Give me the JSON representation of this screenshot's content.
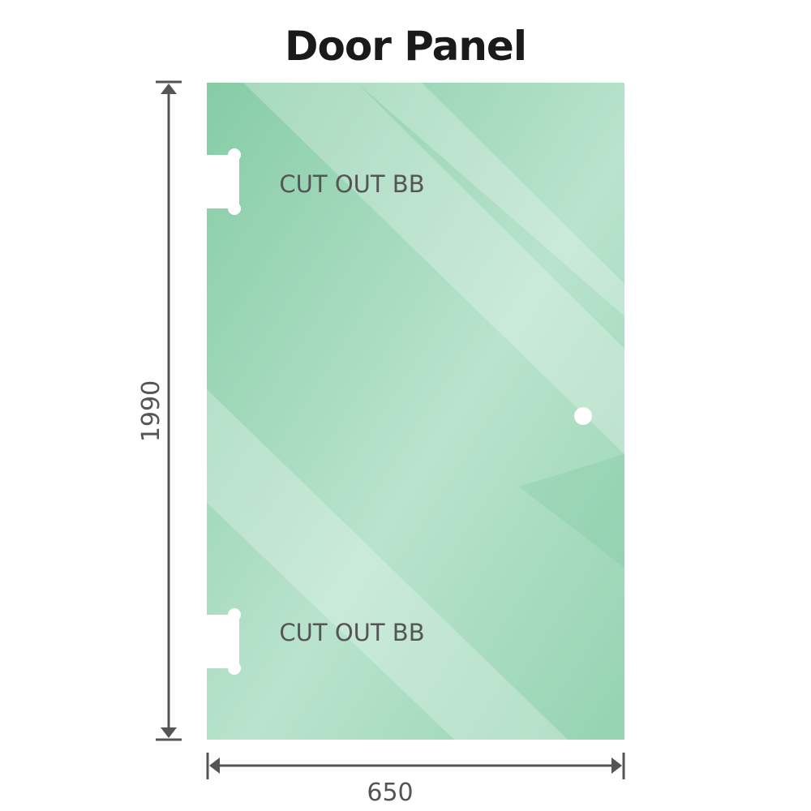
{
  "title": "Door Panel",
  "dimensions": {
    "height": "1990",
    "width": "650"
  },
  "cutouts": [
    {
      "label": "CUT OUT BB"
    },
    {
      "label": "CUT OUT BB"
    }
  ],
  "colors": {
    "glass": "#8fd0ae",
    "glass_light": "#b8e2cc",
    "dimension_line": "#555555"
  }
}
